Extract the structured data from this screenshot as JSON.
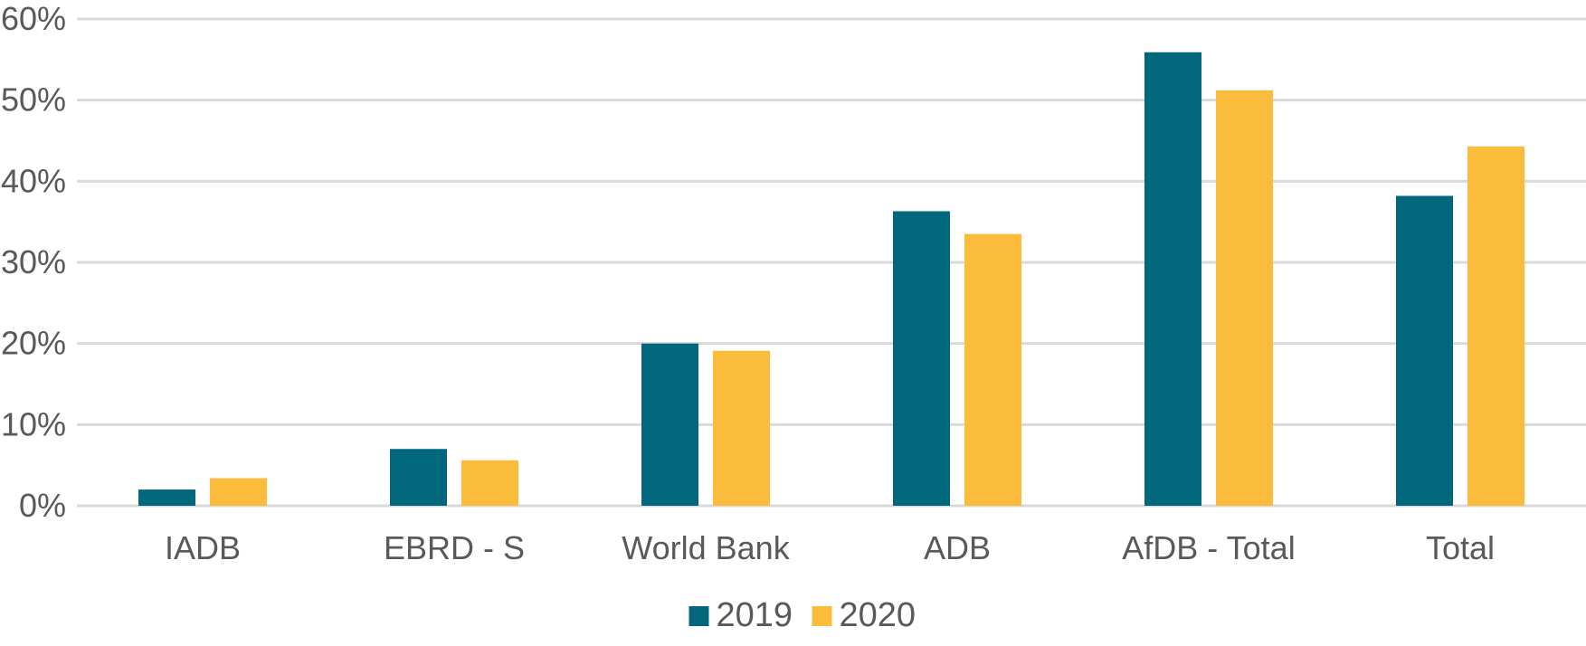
{
  "chart_data": {
    "type": "bar",
    "categories": [
      "IADB",
      "EBRD - S",
      "World Bank",
      "ADB",
      "AfDB - Total",
      "Total"
    ],
    "series": [
      {
        "name": "2019",
        "values": [
          0.02,
          0.07,
          0.2,
          0.363,
          0.559,
          0.382
        ],
        "color": "#00677c"
      },
      {
        "name": "2020",
        "values": [
          0.034,
          0.056,
          0.191,
          0.335,
          0.512,
          0.443
        ],
        "color": "#fbbc3c"
      }
    ],
    "ylim": [
      0,
      0.6
    ],
    "yticks": [
      {
        "value": 0,
        "label": "0%"
      },
      {
        "value": 0.1,
        "label": "10%"
      },
      {
        "value": 0.2,
        "label": "20%"
      },
      {
        "value": 0.3,
        "label": "30%"
      },
      {
        "value": 0.4,
        "label": "40%"
      },
      {
        "value": 0.5,
        "label": "50%"
      },
      {
        "value": 0.6,
        "label": "60%"
      }
    ],
    "grid": true,
    "legend_position": "bottom",
    "title": "",
    "xlabel": "",
    "ylabel": ""
  }
}
